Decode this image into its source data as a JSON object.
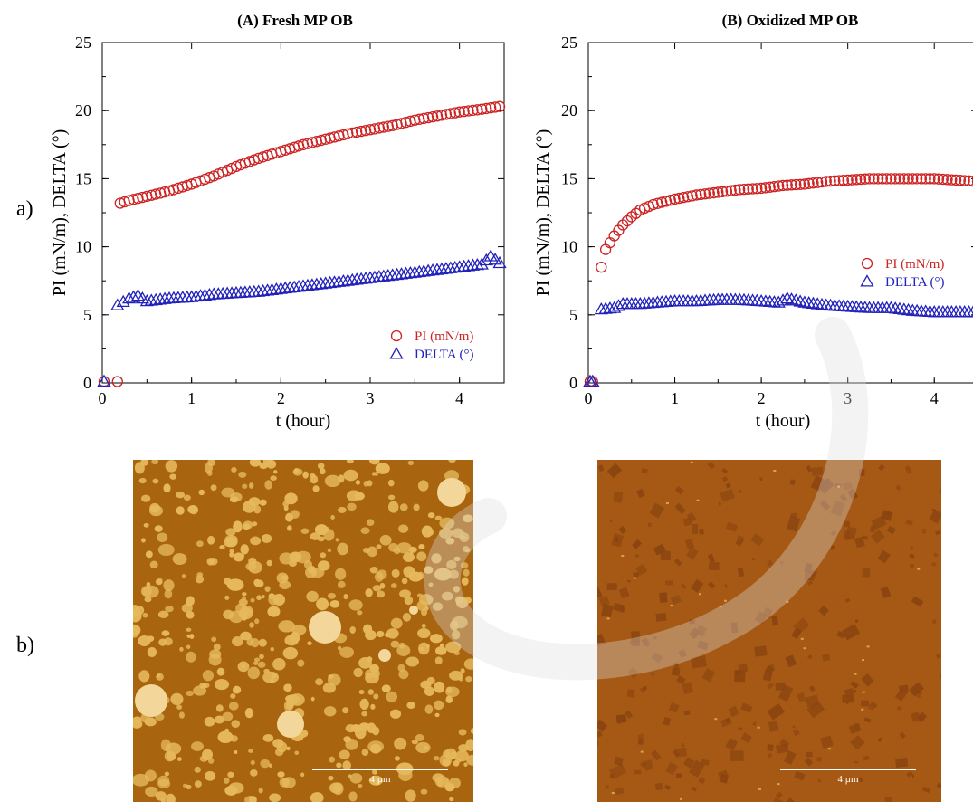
{
  "row_labels": {
    "a": "a)",
    "b": "b)"
  },
  "chart_data": [
    {
      "type": "scatter",
      "title": "(A) Fresh MP OB",
      "xlabel": "t  (hour)",
      "ylabel": "PI (mN/m), DELTA (°)",
      "xlim": [
        0,
        4.5
      ],
      "ylim": [
        0,
        25
      ],
      "xticks": [
        "0",
        "1",
        "2",
        "3",
        "4"
      ],
      "yticks": [
        "0",
        "5",
        "10",
        "15",
        "20",
        "25"
      ],
      "legend_position": "bottom-right",
      "series": [
        {
          "name": "PI (mN/m)",
          "marker": "circle",
          "color": "#cc2222",
          "points": [
            [
              0.02,
              0.1
            ],
            [
              0.17,
              0.1
            ],
            [
              0.2,
              13.2
            ],
            [
              0.3,
              13.4
            ],
            [
              0.5,
              13.7
            ],
            [
              0.75,
              14.1
            ],
            [
              1.0,
              14.6
            ],
            [
              1.25,
              15.2
            ],
            [
              1.5,
              15.9
            ],
            [
              1.75,
              16.5
            ],
            [
              2.0,
              17.0
            ],
            [
              2.25,
              17.5
            ],
            [
              2.5,
              17.9
            ],
            [
              2.75,
              18.3
            ],
            [
              3.0,
              18.6
            ],
            [
              3.25,
              18.9
            ],
            [
              3.5,
              19.3
            ],
            [
              3.75,
              19.6
            ],
            [
              4.0,
              19.9
            ],
            [
              4.25,
              20.1
            ],
            [
              4.45,
              20.3
            ]
          ]
        },
        {
          "name": "DELTA (°)",
          "marker": "triangle",
          "color": "#2222bb",
          "points": [
            [
              0.02,
              0.1
            ],
            [
              0.17,
              5.7
            ],
            [
              0.3,
              6.2
            ],
            [
              0.4,
              6.4
            ],
            [
              0.5,
              6.0
            ],
            [
              0.75,
              6.2
            ],
            [
              1.0,
              6.3
            ],
            [
              1.25,
              6.5
            ],
            [
              1.5,
              6.6
            ],
            [
              1.75,
              6.7
            ],
            [
              2.0,
              6.9
            ],
            [
              2.25,
              7.1
            ],
            [
              2.5,
              7.3
            ],
            [
              2.75,
              7.5
            ],
            [
              3.0,
              7.7
            ],
            [
              3.25,
              7.9
            ],
            [
              3.5,
              8.1
            ],
            [
              3.75,
              8.3
            ],
            [
              4.0,
              8.5
            ],
            [
              4.25,
              8.7
            ],
            [
              4.35,
              9.3
            ],
            [
              4.45,
              8.8
            ]
          ]
        }
      ]
    },
    {
      "type": "scatter",
      "title": "(B) Oxidized MP OB",
      "xlabel": "t  (hour)",
      "ylabel": "PI (mN/m), DELTA (°)",
      "xlim": [
        0,
        4.5
      ],
      "ylim": [
        0,
        25
      ],
      "xticks": [
        "0",
        "1",
        "2",
        "3",
        "4"
      ],
      "yticks": [
        "0",
        "5",
        "10",
        "15",
        "20",
        "25"
      ],
      "legend_position": "bottom-right",
      "series": [
        {
          "name": "PI (mN/m)",
          "marker": "circle",
          "color": "#cc2222",
          "points": [
            [
              0.02,
              0.1
            ],
            [
              0.05,
              0.1
            ],
            [
              0.15,
              8.5
            ],
            [
              0.2,
              9.8
            ],
            [
              0.3,
              10.8
            ],
            [
              0.4,
              11.6
            ],
            [
              0.5,
              12.2
            ],
            [
              0.6,
              12.7
            ],
            [
              0.75,
              13.1
            ],
            [
              1.0,
              13.5
            ],
            [
              1.25,
              13.8
            ],
            [
              1.5,
              14.0
            ],
            [
              1.75,
              14.2
            ],
            [
              2.0,
              14.3
            ],
            [
              2.25,
              14.5
            ],
            [
              2.5,
              14.6
            ],
            [
              2.75,
              14.8
            ],
            [
              3.0,
              14.9
            ],
            [
              3.25,
              15.0
            ],
            [
              3.5,
              15.0
            ],
            [
              3.75,
              15.0
            ],
            [
              4.0,
              15.0
            ],
            [
              4.25,
              14.9
            ],
            [
              4.5,
              14.8
            ]
          ]
        },
        {
          "name": "DELTA (°)",
          "marker": "triangle",
          "color": "#2222bb",
          "points": [
            [
              0.02,
              0.1
            ],
            [
              0.05,
              0.1
            ],
            [
              0.15,
              5.4
            ],
            [
              0.3,
              5.5
            ],
            [
              0.4,
              5.8
            ],
            [
              0.6,
              5.8
            ],
            [
              0.8,
              5.9
            ],
            [
              1.0,
              6.0
            ],
            [
              1.25,
              6.0
            ],
            [
              1.5,
              6.1
            ],
            [
              1.75,
              6.1
            ],
            [
              2.0,
              6.0
            ],
            [
              2.2,
              5.9
            ],
            [
              2.3,
              6.2
            ],
            [
              2.5,
              5.9
            ],
            [
              2.75,
              5.7
            ],
            [
              3.0,
              5.6
            ],
            [
              3.25,
              5.5
            ],
            [
              3.5,
              5.5
            ],
            [
              3.75,
              5.3
            ],
            [
              4.0,
              5.2
            ],
            [
              4.25,
              5.2
            ],
            [
              4.5,
              5.2
            ]
          ]
        }
      ]
    }
  ],
  "afm_images": [
    {
      "scale_label": "4 µm",
      "colors": {
        "background": "#a8640e",
        "feature": "#e6b95c"
      }
    },
    {
      "scale_label": "4 µm",
      "colors": {
        "background": "#a55914",
        "feature": "#8a4410"
      }
    }
  ],
  "watermark": {
    "color": "#dcdcdc"
  }
}
